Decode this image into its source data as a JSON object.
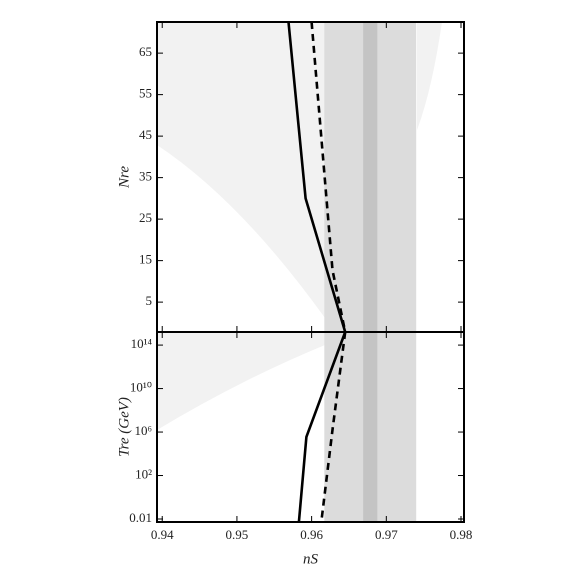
{
  "chart_data": [
    {
      "type": "line",
      "ylabel": "Nre",
      "xlim": [
        0.9393,
        0.9804
      ],
      "xticks": [
        0.94,
        0.95,
        0.96,
        0.97,
        0.98
      ],
      "ylim": [
        -2.2,
        72.5
      ],
      "yticks": [
        5,
        15,
        25,
        35,
        45,
        55,
        65
      ],
      "bands": [
        {
          "range": [
            0.9617,
            0.974
          ],
          "color": "#dcdcdc"
        },
        {
          "range": [
            0.9669,
            0.9688
          ],
          "color": "#c4c4c4"
        }
      ],
      "series": [
        {
          "style": "solid",
          "color": "#000000",
          "x": [
            0.9569,
            0.9592,
            0.9645
          ],
          "values": [
            72.5,
            30,
            -2.2
          ]
        },
        {
          "style": "dashed",
          "color": "#000000",
          "x": [
            0.96,
            0.9628,
            0.9645
          ],
          "values": [
            72.5,
            12.7,
            -2.2
          ]
        }
      ]
    },
    {
      "type": "line",
      "log_y": true,
      "ylabel": "Tre (GeV)",
      "xlabel": "nS",
      "xlim": [
        0.9393,
        0.9804
      ],
      "xticks": [
        0.94,
        0.95,
        0.96,
        0.97,
        0.98
      ],
      "ylim": [
        0.0053,
        1600000000000000.0
      ],
      "yticks": [
        0.01,
        {
          "value": 100,
          "label": "10²"
        },
        {
          "value": 1000000,
          "label": "10⁶"
        },
        {
          "value": 10000000000,
          "label": "10¹⁰"
        },
        {
          "value": 100000000000000,
          "label": "10¹⁴"
        }
      ],
      "bands": [
        {
          "range": [
            0.9617,
            0.974
          ],
          "color": "#dcdcdc"
        },
        {
          "range": [
            0.9669,
            0.9688
          ],
          "color": "#c4c4c4"
        }
      ],
      "series": [
        {
          "style": "solid",
          "color": "#000000",
          "x": [
            0.9645,
            0.9593,
            0.9583
          ],
          "values": [
            1600000000000000.0,
            360000,
            0.0053
          ]
        },
        {
          "style": "dashed",
          "color": "#000000",
          "x": [
            0.9645,
            0.9628,
            0.9613
          ],
          "values": [
            1600000000000000.0,
            1600000,
            0.0053
          ]
        }
      ]
    }
  ]
}
